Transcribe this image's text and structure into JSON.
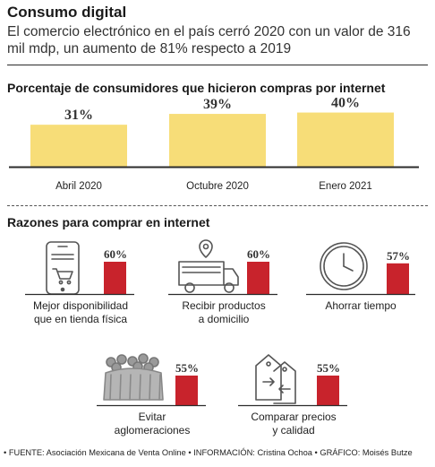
{
  "header": {
    "title": "Consumo digital",
    "subtitle": "El comercio electrónico en el país cerró 2020 con un valor de 316 mil mdp, un aumento de 81% respecto a 2019"
  },
  "colors": {
    "bar_yellow": "#f7dd78",
    "bar_red": "#c8232c",
    "icon_gray": "#555555"
  },
  "chart_data": [
    {
      "type": "bar",
      "title": "Porcentaje de consumidores que hicieron compras por internet",
      "categories": [
        "Abril 2020",
        "Octubre 2020",
        "Enero 2021"
      ],
      "values": [
        31,
        39,
        40
      ],
      "value_labels": [
        "31%",
        "39%",
        "40%"
      ],
      "ylim": [
        0,
        45
      ],
      "grid": false
    },
    {
      "type": "bar",
      "title": "Razones para comprar en internet",
      "categories": [
        "Mejor disponibilidad que en tienda física",
        "Recibir productos a domicilio",
        "Ahorrar tiempo",
        "Evitar aglomeraciones",
        "Comparar precios y calidad"
      ],
      "values": [
        60,
        60,
        57,
        55,
        55
      ],
      "value_labels": [
        "60%",
        "60%",
        "57%",
        "55%",
        "55%"
      ],
      "icons": [
        "phone-shopping-cart-icon",
        "delivery-truck-icon",
        "clock-icon",
        "crowd-icon",
        "price-tags-icon"
      ],
      "label_lines": [
        [
          "Mejor disponibilidad",
          "que en tienda física"
        ],
        [
          "Recibir productos",
          "a domicilio"
        ],
        [
          "Ahorrar tiempo"
        ],
        [
          "Evitar",
          "aglomeraciones"
        ],
        [
          "Comparar precios",
          "y calidad"
        ]
      ],
      "ylim": [
        0,
        100
      ]
    }
  ],
  "footer": {
    "text": "• FUENTE: Asociación Mexicana de Venta Online • INFORMACIÓN: Cristina Ochoa • GRÁFICO: Moisés Butze"
  }
}
